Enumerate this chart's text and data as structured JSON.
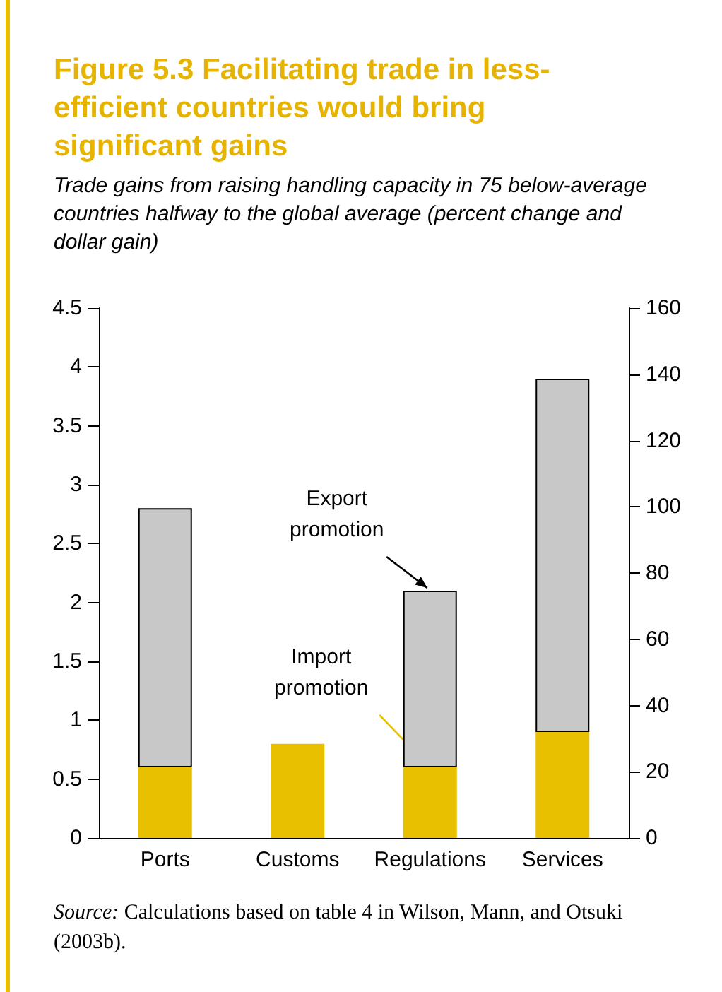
{
  "chart_data": {
    "type": "bar",
    "title": "Figure 5.3  Facilitating trade in less-efficient countries would bring significant gains",
    "subtitle": "Trade gains from raising handling capacity in 75 below-average countries halfway to the global average (percent change and dollar gain)",
    "categories": [
      "Ports",
      "Customs",
      "Regulations",
      "Services"
    ],
    "stacked": true,
    "series": [
      {
        "color": "#e8c000",
        "values": [
          0.6,
          0.8,
          0.6,
          0.9
        ]
      },
      {
        "color": "#c8c8c8",
        "values": [
          2.2,
          null,
          1.5,
          3.0
        ]
      }
    ],
    "ylim": [
      0,
      4.5
    ],
    "yticks": [
      0,
      0.5,
      1,
      1.5,
      2,
      2.5,
      3,
      3.5,
      4,
      4.5
    ],
    "y2lim": [
      0,
      160
    ],
    "y2ticks": [
      0,
      20,
      40,
      60,
      80,
      100,
      120,
      140,
      160
    ],
    "grid": false,
    "annotations": [
      {
        "text": "Export promotion",
        "x": "Regulations",
        "y": 2.1
      },
      {
        "text": "Import promotion",
        "x": "Regulations",
        "y": 0.6
      },
      "Source: Calculations based on table 4 in Wilson, Mann, and Otsuki (2003b)."
    ]
  }
}
